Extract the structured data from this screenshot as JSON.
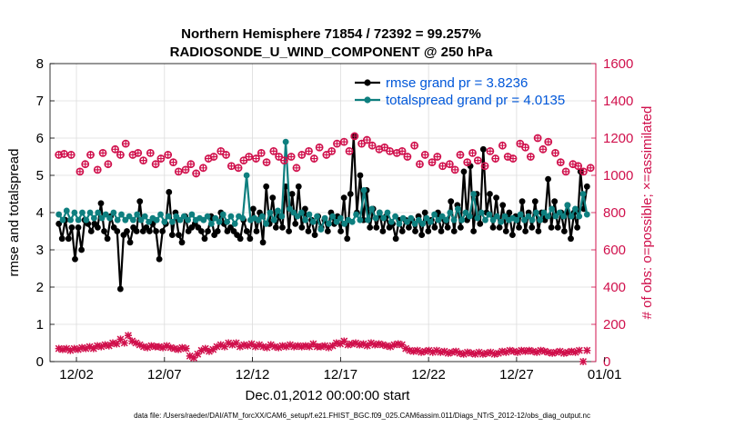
{
  "chart_data": {
    "type": "line",
    "title_line1": "Northern Hemisphere 71854 / 72392 = 99.257%",
    "title_line2": "RADIOSONDE_U_WIND_COMPONENT @ 250 hPa",
    "xlabel": "Dec.01,2012 00:00:00 start",
    "ylabel_left": "rmse and totalspread",
    "ylabel_right": "# of obs: o=possible; ×=assimilated",
    "x_range": [
      0.5,
      31.5
    ],
    "ylim_left": [
      0,
      8
    ],
    "ylim_right": [
      0,
      1600
    ],
    "x_ticks": [
      {
        "x": 2,
        "label": "12/02"
      },
      {
        "x": 7,
        "label": "12/07"
      },
      {
        "x": 12,
        "label": "12/12"
      },
      {
        "x": 17,
        "label": "12/17"
      },
      {
        "x": 22,
        "label": "12/22"
      },
      {
        "x": 27,
        "label": "12/27"
      },
      {
        "x": 32,
        "label": "01/01"
      }
    ],
    "y_ticks_left": [
      "0",
      "1",
      "2",
      "3",
      "4",
      "5",
      "6",
      "7",
      "8"
    ],
    "y_ticks_right": [
      "0",
      "200",
      "400",
      "600",
      "800",
      "1000",
      "1200",
      "1400",
      "1600"
    ],
    "legend": [
      {
        "label": "rmse grand pr = 3.8236",
        "color": "#000000"
      },
      {
        "label": "totalspread grand pr = 4.0135",
        "color": "#0e7f7f"
      }
    ],
    "series": [
      {
        "name": "rmse",
        "color": "#000000",
        "axis": "left",
        "values": [
          3.7,
          3.3,
          3.8,
          3.3,
          3.6,
          2.75,
          3.6,
          3.0,
          3.8,
          3.7,
          3.5,
          3.7,
          3.6,
          4.25,
          3.5,
          3.3,
          3.9,
          3.6,
          3.5,
          1.95,
          3.4,
          3.5,
          3.2,
          3.6,
          3.5,
          4.3,
          3.5,
          3.6,
          3.5,
          3.7,
          3.5,
          2.75,
          3.5,
          3.7,
          4.55,
          3.4,
          4.0,
          3.4,
          3.2,
          3.9,
          3.5,
          3.6,
          3.7,
          3.6,
          3.5,
          3.3,
          3.5,
          3.9,
          3.4,
          3.5,
          4.0,
          3.7,
          3.5,
          3.6,
          3.5,
          3.4,
          3.3,
          3.8,
          3.5,
          3.3,
          4.1,
          3.5,
          4.0,
          3.2,
          4.7,
          3.7,
          4.4,
          3.6,
          3.9,
          3.6,
          4.7,
          3.5,
          4.5,
          3.7,
          4.7,
          3.6,
          4.1,
          3.5,
          3.8,
          3.4,
          3.9,
          3.6,
          3.8,
          3.5,
          4.0,
          3.7,
          3.9,
          3.5,
          4.4,
          3.3,
          4.5,
          6.05,
          4.0,
          5.0,
          3.8,
          4.6,
          3.6,
          4.1,
          3.6,
          4.0,
          3.5,
          3.9,
          3.6,
          3.7,
          3.3,
          3.8,
          3.5,
          3.8,
          3.6,
          3.8,
          3.5,
          3.9,
          3.4,
          4.0,
          3.5,
          3.8,
          3.6,
          4.0,
          3.5,
          3.8,
          3.6,
          4.3,
          3.5,
          4.2,
          3.6,
          5.1,
          3.8,
          5.25,
          3.5,
          4.5,
          3.7,
          5.7,
          4.0,
          4.5,
          3.6,
          4.4,
          3.6,
          4.2,
          3.5,
          4.0,
          3.4,
          3.9,
          3.6,
          4.3,
          3.5,
          4.0,
          3.6,
          4.3,
          3.5,
          4.0,
          3.8,
          4.9,
          3.6,
          4.3,
          3.6,
          4.0,
          3.5,
          4.2,
          3.3,
          4.0,
          3.6,
          5.1,
          4.1,
          4.7
        ]
      },
      {
        "name": "totalspread",
        "color": "#0e7f7f",
        "axis": "left",
        "values": [
          3.95,
          3.8,
          4.05,
          3.8,
          4.0,
          3.8,
          4.0,
          3.8,
          4.0,
          3.85,
          4.0,
          3.85,
          3.95,
          3.85,
          4.0,
          3.8,
          3.95,
          3.8,
          3.9,
          3.8,
          3.95,
          3.8,
          3.9,
          3.75,
          3.85,
          3.8,
          3.95,
          3.75,
          3.9,
          3.75,
          3.9,
          3.8,
          3.9,
          3.8,
          3.95,
          3.8,
          3.85,
          3.8,
          3.9,
          3.7,
          3.85,
          3.75,
          3.95,
          3.75,
          3.9,
          3.7,
          3.9,
          3.85,
          5.0,
          3.8,
          3.85,
          3.8,
          3.9,
          3.7,
          4.0,
          3.8,
          4.05,
          3.9,
          5.9,
          4.1,
          4.0,
          3.9,
          4.0,
          3.8,
          3.95,
          3.75,
          3.9,
          3.55,
          3.85,
          3.7,
          3.9,
          3.75,
          3.85,
          3.7,
          3.8,
          3.75,
          3.95,
          3.8,
          4.6,
          3.8,
          4.1,
          3.85,
          4.0,
          3.85,
          4.0,
          3.75,
          3.9,
          3.7,
          3.85,
          3.75,
          3.85,
          3.7,
          3.8,
          3.7,
          3.85,
          3.75,
          3.95,
          3.8,
          3.9,
          3.8,
          4.0,
          3.8,
          4.1,
          3.8,
          4.0,
          3.9,
          4.5,
          3.85,
          4.0,
          3.8,
          3.95,
          3.8,
          3.9,
          3.75,
          3.9,
          3.8,
          3.85,
          3.8,
          3.95,
          3.8,
          3.9,
          3.8,
          4.0,
          3.8,
          4.0,
          3.9,
          4.1,
          3.9,
          4.0,
          3.9,
          4.2,
          3.9,
          4.1,
          3.9,
          4.5,
          3.95
        ]
      },
      {
        "name": "obs possible",
        "color": "#d0104c",
        "axis": "right",
        "marker": "o",
        "x": [
          1.0,
          1.3,
          1.7,
          2.2,
          2.5,
          2.8,
          3.2,
          3.5,
          3.8,
          4.2,
          4.5,
          4.8,
          5.2,
          5.5,
          5.8,
          6.2,
          6.5,
          6.8,
          7.2,
          7.5,
          7.8,
          8.2,
          8.5,
          8.8,
          9.2,
          9.5,
          9.8,
          10.2,
          10.5,
          10.8,
          11.2,
          11.5,
          11.8,
          12.2,
          12.5,
          12.8,
          13.2,
          13.5,
          13.8,
          14.2,
          14.5,
          14.8,
          15.2,
          15.5,
          15.8,
          16.2,
          16.5,
          16.8,
          17.2,
          17.5,
          17.8,
          18.2,
          18.5,
          18.8,
          19.2,
          19.5,
          19.8,
          20.2,
          20.5,
          20.8,
          21.2,
          21.5,
          21.8,
          22.2,
          22.5,
          22.8,
          23.2,
          23.5,
          23.8,
          24.2,
          24.5,
          24.8,
          25.2,
          25.5,
          25.8,
          26.2,
          26.5,
          26.8,
          27.2,
          27.5,
          27.8,
          28.2,
          28.5,
          28.8,
          29.2,
          29.5,
          29.8,
          30.2,
          30.5,
          30.8,
          31.2
        ],
        "values": [
          1110,
          1115,
          1110,
          1020,
          1060,
          1110,
          1030,
          1120,
          1060,
          1140,
          1110,
          1170,
          1110,
          1120,
          1080,
          1120,
          1060,
          1090,
          1110,
          1070,
          1020,
          1030,
          1060,
          1010,
          1040,
          1090,
          1100,
          1130,
          1110,
          1050,
          1040,
          1080,
          1100,
          1090,
          1120,
          1070,
          1130,
          1100,
          1080,
          1100,
          1040,
          1110,
          1130,
          1090,
          1150,
          1110,
          1130,
          1170,
          1180,
          1130,
          1210,
          1170,
          1190,
          1160,
          1140,
          1150,
          1130,
          1120,
          1130,
          1100,
          1160,
          1060,
          1110,
          1070,
          1100,
          1050,
          1060,
          1030,
          1110,
          1070,
          1120,
          1080,
          1050,
          1130,
          1090,
          1160,
          1100,
          1090,
          1170,
          1150,
          1100,
          1200,
          1140,
          1180,
          1120,
          1070,
          1020,
          1060,
          1050,
          1020,
          1040
        ]
      },
      {
        "name": "obs assimilated",
        "color": "#d0104c",
        "axis": "right",
        "marker": "x",
        "values": [
          70,
          65,
          70,
          60,
          70,
          65,
          75,
          70,
          80,
          70,
          85,
          80,
          90,
          85,
          100,
          95,
          120,
          100,
          140,
          110,
          100,
          90,
          80,
          75,
          85,
          80,
          80,
          75,
          85,
          75,
          70,
          65,
          75,
          70,
          30,
          20,
          40,
          60,
          70,
          55,
          65,
          80,
          90,
          80,
          100,
          90,
          100,
          80,
          90,
          85,
          95,
          80,
          90,
          80,
          75,
          90,
          80,
          75,
          85,
          80,
          90,
          80,
          85,
          80,
          85,
          80,
          95,
          80,
          80,
          85,
          75,
          85,
          100,
          95,
          110,
          90,
          95,
          100,
          90,
          95,
          85,
          100,
          90,
          95,
          90,
          85,
          80,
          90,
          95,
          90,
          70,
          60,
          55,
          60,
          50,
          55,
          60,
          50,
          60,
          50,
          55,
          45,
          50,
          55,
          45,
          40,
          50,
          45,
          40,
          50,
          40,
          45,
          50,
          40,
          45,
          55,
          50,
          60,
          55,
          50,
          60,
          55,
          60,
          55,
          50,
          60,
          55,
          50,
          45,
          50,
          55,
          45,
          50,
          55,
          50,
          60,
          0,
          60
        ]
      }
    ],
    "footnote": "data file: /Users/raeder/DAI/ATM_forcXX/CAM6_setup/f.e21.FHIST_BGC.f09_025.CAM6assim.011/Diags_NTrS_2012-12/obs_diag_output.nc"
  }
}
